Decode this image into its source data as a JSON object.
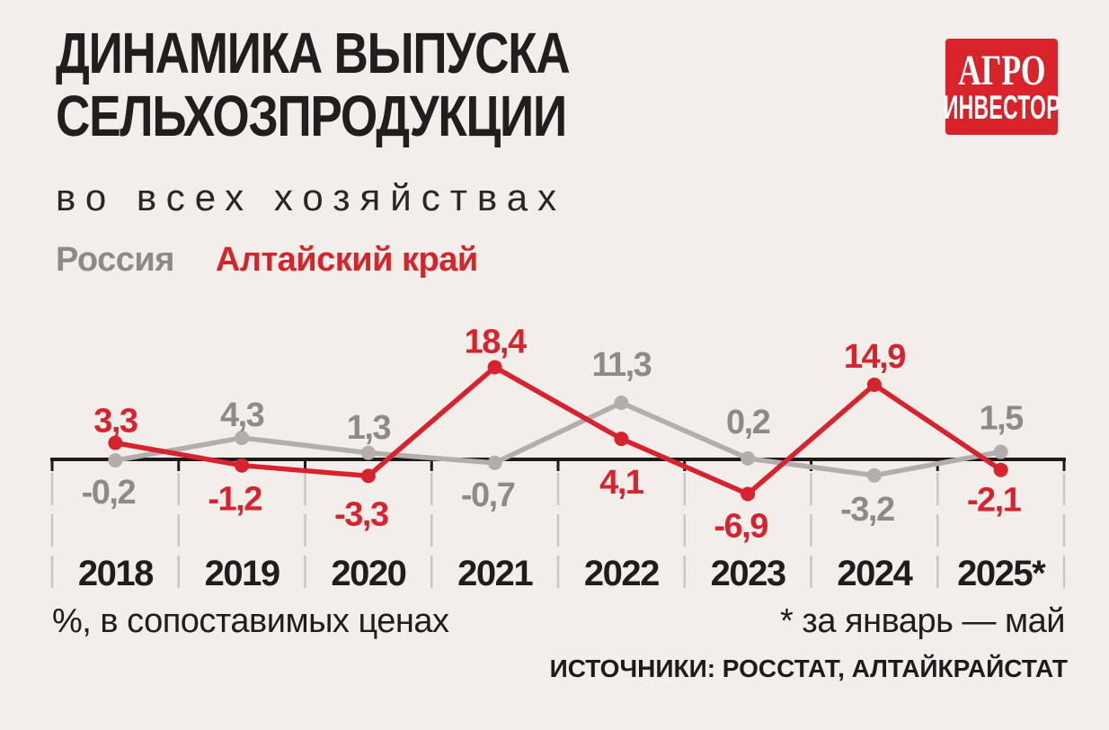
{
  "page": {
    "background": "#f2eeea"
  },
  "header": {
    "title_line1": "ДИНАМИКА ВЫПУСКА",
    "title_line2": "СЕЛЬХОЗПРОДУКЦИИ",
    "subtitle": "во всех хозяйствах"
  },
  "logo": {
    "line1": "АГРО",
    "line2": "ИНВЕСТОР",
    "bg": "#d8232a",
    "text_color": "#ffffff"
  },
  "legend": [
    {
      "label": "Россия",
      "color": "#8e8a88"
    },
    {
      "label": "Алтайский край",
      "color": "#d6242b"
    }
  ],
  "chart_data": {
    "type": "line",
    "title": "Динамика выпуска сельхозпродукции во всех хозяйствах",
    "categories": [
      "2018",
      "2019",
      "2020",
      "2021",
      "2022",
      "2023",
      "2024",
      "2025*"
    ],
    "series": [
      {
        "name": "Россия",
        "color": "#b2aeab",
        "label_color": "#8e8a88",
        "values": [
          -0.2,
          4.3,
          1.3,
          -0.7,
          11.3,
          0.2,
          -3.2,
          1.5
        ],
        "label_side": [
          "below",
          "above",
          "above",
          "below",
          "above",
          "above",
          "below",
          "above"
        ],
        "label_dy": [
          0,
          3,
          0,
          0,
          -14,
          -12,
          2,
          -9
        ]
      },
      {
        "name": "Алтайский край",
        "color": "#d8232e",
        "label_color": "#d8232e",
        "values": [
          3.3,
          -1.2,
          -3.3,
          18.4,
          4.1,
          -6.9,
          14.9,
          -2.1
        ],
        "label_side": [
          "above",
          "below",
          "below",
          "above",
          "below",
          "below",
          "above",
          "below"
        ],
        "label_dy": [
          4,
          2,
          7,
          0,
          13,
          0,
          -3,
          -2
        ]
      }
    ],
    "decimal_separator": ",",
    "ylabel": "%, в сопоставимых ценах",
    "ylim": [
      -8,
      20
    ],
    "axis": {
      "zero_baseline": true,
      "line_color": "#1e1b1a",
      "tick_color": "#1e1b1a",
      "grid": "dashed-vertical-below-axis",
      "grid_color": "#cac6c2",
      "year_color": "#201d1c"
    },
    "legend_position": "top-left"
  },
  "footer": {
    "left_note": "%, в сопоставимых ценах",
    "right_note": "* за январь — май",
    "sources": "ИСТОЧНИКИ: РОССТАТ, АЛТАЙКРАЙСТАТ"
  }
}
